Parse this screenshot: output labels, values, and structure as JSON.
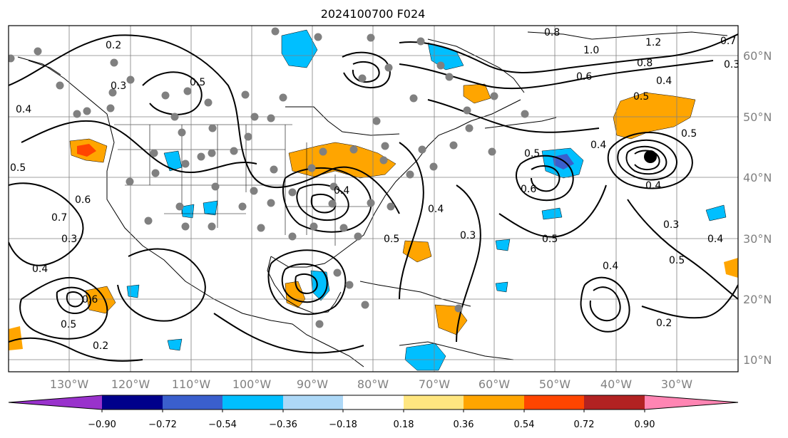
{
  "title": "2024100700 F024",
  "map": {
    "lon_labels": [
      "130°W",
      "120°W",
      "110°W",
      "100°W",
      "90°W",
      "80°W",
      "70°W",
      "60°W",
      "50°W",
      "40°W",
      "30°W"
    ],
    "lat_labels": [
      "60°N",
      "50°N",
      "40°N",
      "30°N",
      "20°N",
      "10°N"
    ],
    "contour_labels": [
      "0.2",
      "0.3",
      "0.4",
      "0.5",
      "0.6",
      "0.7",
      "0.8",
      "1.0",
      "1.2",
      "0.5",
      "0.4",
      "0.3",
      "0.4",
      "0.5",
      "0.6",
      "0.5",
      "0.4",
      "0.3",
      "0.5",
      "0.4",
      "0.2",
      "0.8",
      "0.6",
      "0.5",
      "0.4",
      "0.3",
      "0.5",
      "0.4",
      "0.2",
      "0.5",
      "0.6",
      "0.4",
      "0.3",
      "0.5",
      "0.4",
      "0.7"
    ],
    "line_color": "#000000",
    "grid_color": "#808080",
    "station_dot_color": "#808080",
    "closed_low_marker_color": "#000000"
  },
  "colorbar": {
    "ticks": [
      "−0.90",
      "−0.72",
      "−0.54",
      "−0.36",
      "−0.18",
      "0.18",
      "0.36",
      "0.54",
      "0.72",
      "0.90"
    ],
    "colors": [
      "#9932cc",
      "#00008b",
      "#3a5fcd",
      "#00bfff",
      "#add8f7",
      "#ffffff",
      "#ffe680",
      "#ffa500",
      "#ff4500",
      "#b22222",
      "#ff85b3"
    ]
  }
}
